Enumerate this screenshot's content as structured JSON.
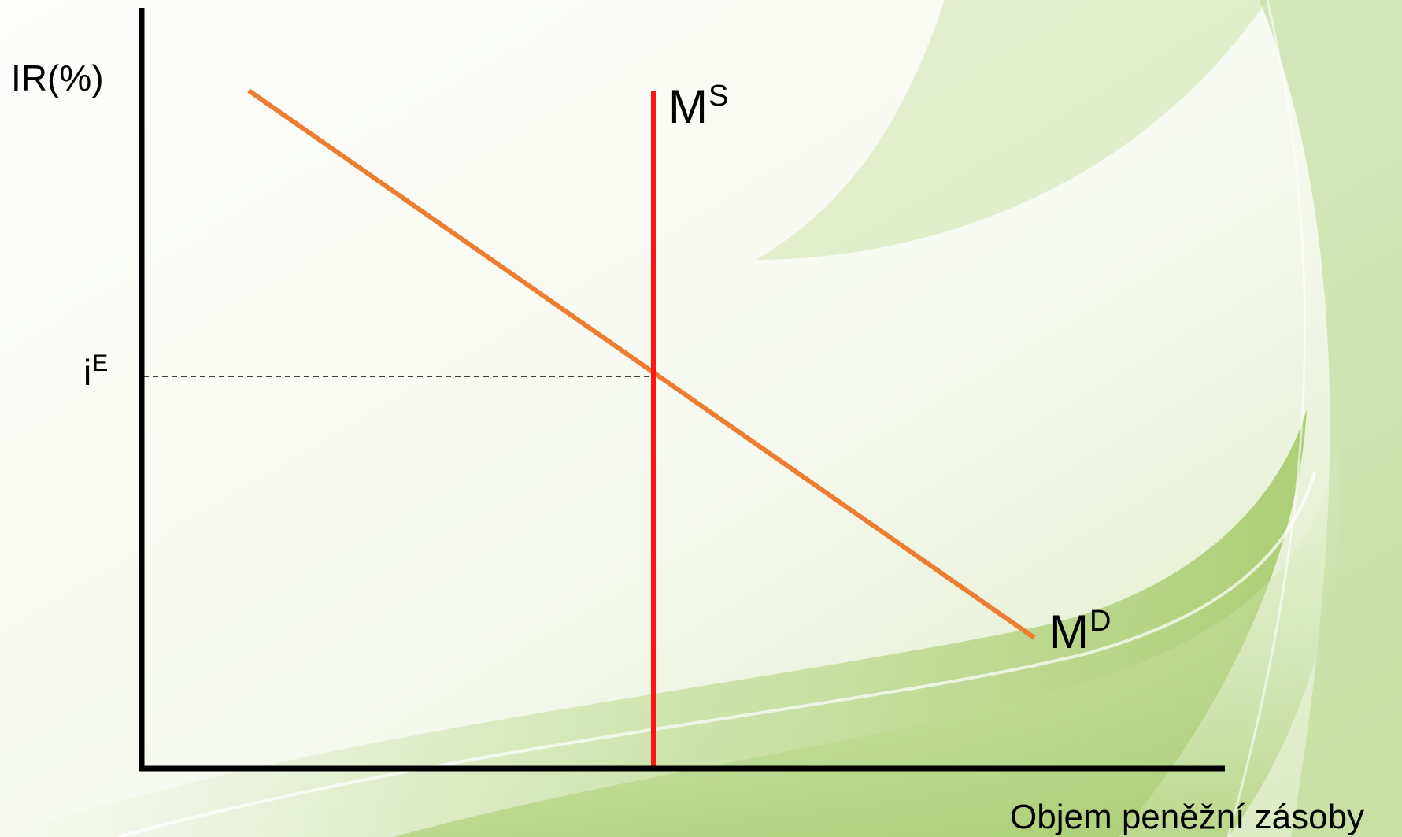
{
  "diagram": {
    "y_axis_label": "IR(%)",
    "x_axis_label": "Objem peněžní zásoby",
    "equilibrium_label": {
      "base": "i",
      "sup": "E"
    },
    "supply_label": {
      "base": "M",
      "sup": "S"
    },
    "demand_label": {
      "base": "M",
      "sup": "D"
    }
  },
  "colors": {
    "axis": "#000000",
    "supply_curve": "#ff1414",
    "demand_curve": "#ed7d31",
    "guide_line": "#000000",
    "background": "#fbfcf8",
    "background_swirl": "#8fc24a"
  }
}
